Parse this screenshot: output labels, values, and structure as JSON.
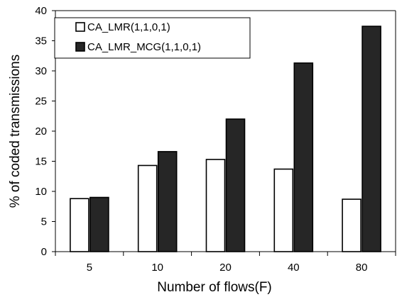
{
  "chart_data": {
    "type": "bar",
    "title": "",
    "xlabel": "Number of flows(F)",
    "ylabel": "% of coded transmissions",
    "ylim": [
      0,
      40
    ],
    "yticks": [
      "0",
      "5",
      "10",
      "15",
      "20",
      "25",
      "30",
      "35",
      "40"
    ],
    "categories": [
      "5",
      "10",
      "20",
      "40",
      "80"
    ],
    "series": [
      {
        "name": "CA_LMR(1,1,0,1)",
        "values": [
          8.8,
          14.3,
          15.3,
          13.7,
          8.7
        ],
        "color": "#ffffff"
      },
      {
        "name": "CA_LMR_MCG(1,1,0,1)",
        "values": [
          9.0,
          16.6,
          22.0,
          31.3,
          37.4
        ],
        "color": "#262626"
      }
    ],
    "grid": false,
    "legend_position": "top-left"
  }
}
